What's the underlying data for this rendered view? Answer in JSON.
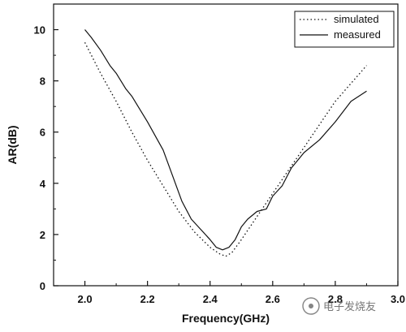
{
  "chart_data": {
    "type": "line",
    "xlabel": "Frequency(GHz)",
    "ylabel": "AR(dB)",
    "xlim": [
      1.9,
      3.0
    ],
    "ylim": [
      0,
      11
    ],
    "xticks": [
      "2.0",
      "2.2",
      "2.4",
      "2.6",
      "2.8",
      "3.0"
    ],
    "yticks": [
      "0",
      "2",
      "4",
      "6",
      "8",
      "10"
    ],
    "grid": false,
    "legend_position": "top-right",
    "series": [
      {
        "name": "simulated",
        "style": "dotted",
        "x": [
          2.0,
          2.05,
          2.1,
          2.15,
          2.2,
          2.25,
          2.3,
          2.35,
          2.4,
          2.43,
          2.45,
          2.47,
          2.5,
          2.55,
          2.6,
          2.65,
          2.7,
          2.75,
          2.8,
          2.85,
          2.9
        ],
        "y": [
          9.5,
          8.3,
          7.2,
          6.0,
          4.9,
          3.9,
          2.9,
          2.1,
          1.5,
          1.25,
          1.15,
          1.3,
          1.8,
          2.7,
          3.6,
          4.5,
          5.4,
          6.3,
          7.2,
          7.9,
          8.6
        ]
      },
      {
        "name": "measured",
        "style": "solid",
        "x": [
          2.0,
          2.02,
          2.05,
          2.08,
          2.1,
          2.13,
          2.15,
          2.2,
          2.25,
          2.28,
          2.31,
          2.34,
          2.37,
          2.4,
          2.42,
          2.44,
          2.46,
          2.48,
          2.5,
          2.52,
          2.55,
          2.58,
          2.6,
          2.63,
          2.66,
          2.7,
          2.75,
          2.8,
          2.85,
          2.9
        ],
        "y": [
          10.0,
          9.7,
          9.2,
          8.6,
          8.3,
          7.7,
          7.4,
          6.4,
          5.3,
          4.3,
          3.3,
          2.6,
          2.2,
          1.8,
          1.5,
          1.4,
          1.5,
          1.8,
          2.3,
          2.6,
          2.9,
          3.0,
          3.5,
          3.9,
          4.6,
          5.2,
          5.7,
          6.4,
          7.2,
          7.6
        ]
      }
    ]
  },
  "watermark": "电子发烧友"
}
